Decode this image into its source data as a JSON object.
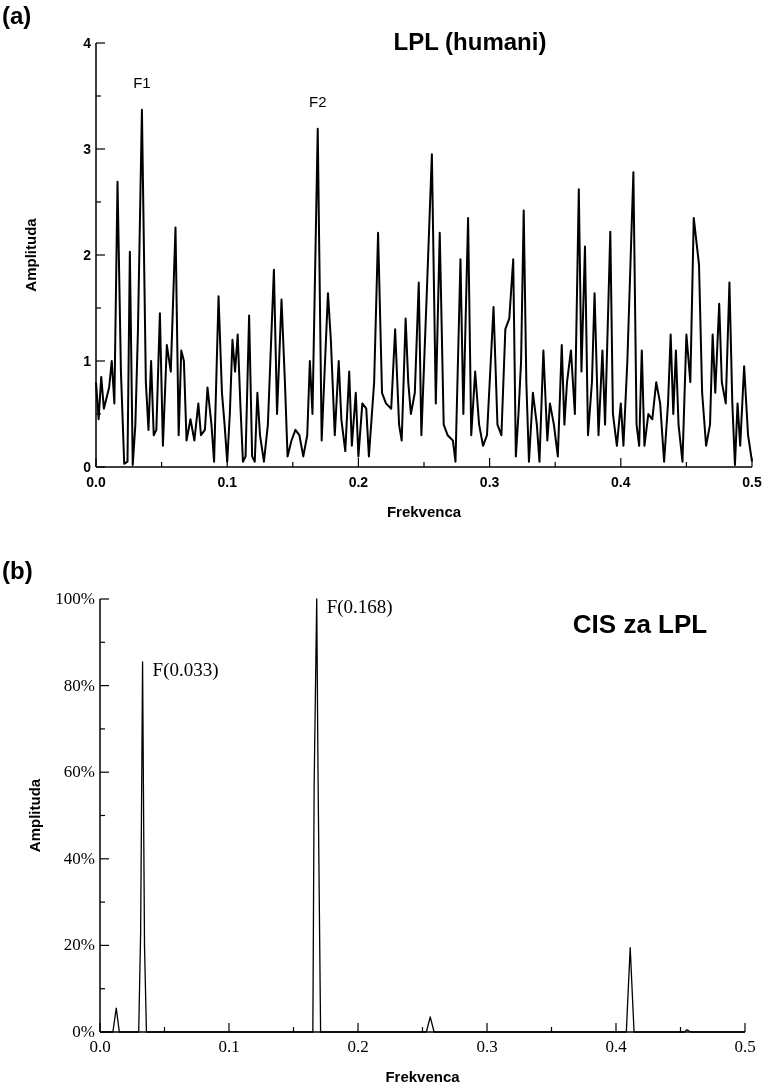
{
  "chart_data": [
    {
      "type": "line",
      "title": "LPL (humani)",
      "xlabel": "Frekvenca",
      "ylabel": "Amplituda",
      "annotations": [
        "(a)",
        {
          "text": "F1",
          "x": 0.035,
          "y": 3.37
        },
        {
          "text": "F2",
          "x": 0.169,
          "y": 3.19
        }
      ],
      "xlim": [
        0,
        0.5
      ],
      "ylim": [
        0,
        4
      ],
      "xticks": [
        {
          "value": 0,
          "label": "0.0"
        },
        {
          "value": 0.05,
          "label": null
        },
        0.1,
        {
          "value": 0.15,
          "label": null
        },
        0.2,
        {
          "value": 0.25,
          "label": null
        },
        0.3,
        {
          "value": 0.35,
          "label": null
        },
        0.4,
        {
          "value": 0.45,
          "label": null
        },
        0.5
      ],
      "yticks": [
        0,
        {
          "value": 0.5,
          "label": null
        },
        1,
        {
          "value": 1.5,
          "label": null
        },
        2,
        {
          "value": 2.5,
          "label": null
        },
        3,
        {
          "value": 3.5,
          "label": null
        },
        4
      ],
      "grid": false,
      "series": [
        {
          "color": "#000000",
          "x": [
            0,
            0.002,
            0.004,
            0.006,
            0.01,
            0.012,
            0.014,
            0.0164,
            0.019,
            0.0215,
            0.024,
            0.0258,
            0.028,
            0.03,
            0.032,
            0.035,
            0.038,
            0.04,
            0.042,
            0.044,
            0.046,
            0.0487,
            0.051,
            0.054,
            0.057,
            0.0606,
            0.063,
            0.065,
            0.067,
            0.069,
            0.072,
            0.075,
            0.078,
            0.08,
            0.083,
            0.085,
            0.088,
            0.09,
            0.0934,
            0.096,
            0.098,
            0.1,
            0.102,
            0.104,
            0.106,
            0.108,
            0.11,
            0.112,
            0.114,
            0.1167,
            0.119,
            0.121,
            0.123,
            0.125,
            0.128,
            0.131,
            0.1356,
            0.138,
            0.1414,
            0.144,
            0.146,
            0.149,
            0.152,
            0.155,
            0.158,
            0.161,
            0.163,
            0.165,
            0.169,
            0.172,
            0.1768,
            0.179,
            0.182,
            0.185,
            0.187,
            0.19,
            0.193,
            0.195,
            0.198,
            0.2,
            0.203,
            0.206,
            0.208,
            0.212,
            0.215,
            0.218,
            0.221,
            0.225,
            0.228,
            0.231,
            0.233,
            0.236,
            0.238,
            0.24,
            0.243,
            0.246,
            0.248,
            0.252,
            0.256,
            0.259,
            0.262,
            0.265,
            0.268,
            0.272,
            0.274,
            0.2778,
            0.28,
            0.2836,
            0.286,
            0.289,
            0.292,
            0.295,
            0.298,
            0.303,
            0.306,
            0.309,
            0.312,
            0.315,
            0.318,
            0.32,
            0.322,
            0.324,
            0.326,
            0.328,
            0.33,
            0.333,
            0.336,
            0.338,
            0.341,
            0.344,
            0.346,
            0.349,
            0.352,
            0.355,
            0.357,
            0.359,
            0.362,
            0.365,
            0.368,
            0.37,
            0.3727,
            0.375,
            0.378,
            0.38,
            0.383,
            0.386,
            0.388,
            0.392,
            0.394,
            0.397,
            0.4,
            0.402,
            0.405,
            0.4096,
            0.412,
            0.414,
            0.416,
            0.418,
            0.421,
            0.424,
            0.427,
            0.43,
            0.433,
            0.436,
            0.438,
            0.44,
            0.442,
            0.444,
            0.447,
            0.45,
            0.453,
            0.4556,
            0.4596,
            0.462,
            0.465,
            0.468,
            0.47,
            0.472,
            0.475,
            0.477,
            0.48,
            0.4828,
            0.485,
            0.487,
            0.489,
            0.491,
            0.494,
            0.497,
            0.5
          ],
          "values": [
            0.8,
            0.45,
            0.85,
            0.55,
            0.75,
            1.0,
            0.6,
            2.69,
            0.9,
            0.03,
            0.05,
            2.03,
            0.02,
            0.4,
            1.3,
            3.37,
            0.8,
            0.35,
            1.0,
            0.3,
            0.35,
            1.45,
            0.2,
            1.15,
            0.9,
            2.26,
            0.3,
            1.1,
            1.0,
            0.25,
            0.45,
            0.25,
            0.6,
            0.3,
            0.35,
            0.75,
            0.4,
            0.05,
            1.61,
            0.7,
            0.4,
            0.05,
            0.5,
            1.2,
            0.9,
            1.25,
            0.6,
            0.05,
            0.1,
            1.43,
            0.1,
            0.05,
            0.7,
            0.3,
            0.05,
            0.4,
            1.86,
            0.5,
            1.58,
            0.8,
            0.1,
            0.25,
            0.35,
            0.3,
            0.1,
            0.3,
            1.0,
            0.5,
            3.19,
            0.25,
            1.64,
            1.2,
            0.3,
            1.0,
            0.45,
            0.15,
            0.9,
            0.2,
            0.7,
            0.1,
            0.6,
            0.55,
            0.1,
            0.8,
            2.21,
            0.7,
            0.6,
            0.55,
            1.3,
            0.4,
            0.25,
            1.4,
            0.8,
            0.5,
            0.7,
            1.74,
            0.3,
            1.6,
            2.95,
            0.6,
            2.21,
            0.4,
            0.3,
            0.25,
            0.05,
            1.96,
            0.5,
            2.35,
            0.3,
            0.9,
            0.4,
            0.2,
            0.3,
            1.51,
            0.4,
            0.3,
            1.3,
            1.4,
            1.96,
            0.1,
            0.5,
            1.0,
            2.42,
            0.8,
            0.05,
            0.7,
            0.4,
            0.05,
            1.1,
            0.25,
            0.6,
            0.4,
            0.1,
            1.15,
            0.4,
            0.8,
            1.1,
            0.5,
            2.62,
            0.9,
            2.08,
            0.3,
            0.8,
            1.64,
            0.3,
            1.1,
            0.4,
            2.22,
            0.5,
            0.2,
            0.6,
            0.2,
            1.0,
            2.78,
            0.4,
            0.2,
            1.1,
            0.2,
            0.5,
            0.45,
            0.8,
            0.6,
            0.05,
            0.6,
            1.25,
            0.5,
            1.1,
            0.4,
            0.05,
            1.25,
            0.8,
            2.35,
            1.91,
            0.7,
            0.2,
            0.4,
            1.25,
            0.7,
            1.54,
            0.8,
            0.6,
            1.74,
            0.6,
            0.02,
            0.6,
            0.2,
            0.95,
            0.3,
            0.05
          ]
        }
      ]
    },
    {
      "type": "line",
      "title": "CIS za LPL",
      "xlabel": "Frekvenca",
      "ylabel": "Amplituda",
      "annotations": [
        "(b)",
        {
          "text": "F(0.033)",
          "x": 0.033,
          "y": 85.5
        },
        {
          "text": "F(0.168)",
          "x": 0.168,
          "y": 100
        }
      ],
      "xlim": [
        0,
        0.5
      ],
      "ylim": [
        0,
        100
      ],
      "xticks": [
        {
          "value": 0,
          "label": "0.0"
        },
        {
          "value": 0.05,
          "label": null
        },
        0.1,
        {
          "value": 0.15,
          "label": null
        },
        0.2,
        {
          "value": 0.25,
          "label": null
        },
        0.3,
        {
          "value": 0.35,
          "label": null
        },
        0.4,
        {
          "value": 0.45,
          "label": null
        },
        0.5
      ],
      "yticks": [
        {
          "value": 0,
          "label": "0%"
        },
        {
          "value": 10,
          "label": null
        },
        {
          "value": 20,
          "label": "20%"
        },
        {
          "value": 30,
          "label": null
        },
        {
          "value": 40,
          "label": "40%"
        },
        {
          "value": 50,
          "label": null
        },
        {
          "value": 60,
          "label": "60%"
        },
        {
          "value": 70,
          "label": null
        },
        {
          "value": 80,
          "label": "80%"
        },
        {
          "value": 90,
          "label": null
        },
        {
          "value": 100,
          "label": "100%"
        }
      ],
      "grid": false,
      "series": [
        {
          "color": "#000000",
          "x": [
            0,
            0.01,
            0.0126,
            0.015,
            0.03,
            0.0315,
            0.033,
            0.0345,
            0.036,
            0.165,
            0.166,
            0.168,
            0.169,
            0.171,
            0.253,
            0.256,
            0.259,
            0.408,
            0.411,
            0.414,
            0.453,
            0.455,
            0.458,
            0.5
          ],
          "values": [
            0,
            0,
            5.5,
            0,
            0,
            23,
            85.5,
            20,
            0,
            0,
            57,
            100,
            60,
            0,
            0,
            3.5,
            0,
            0,
            19.5,
            0,
            0,
            0.5,
            0,
            0
          ]
        }
      ]
    }
  ]
}
